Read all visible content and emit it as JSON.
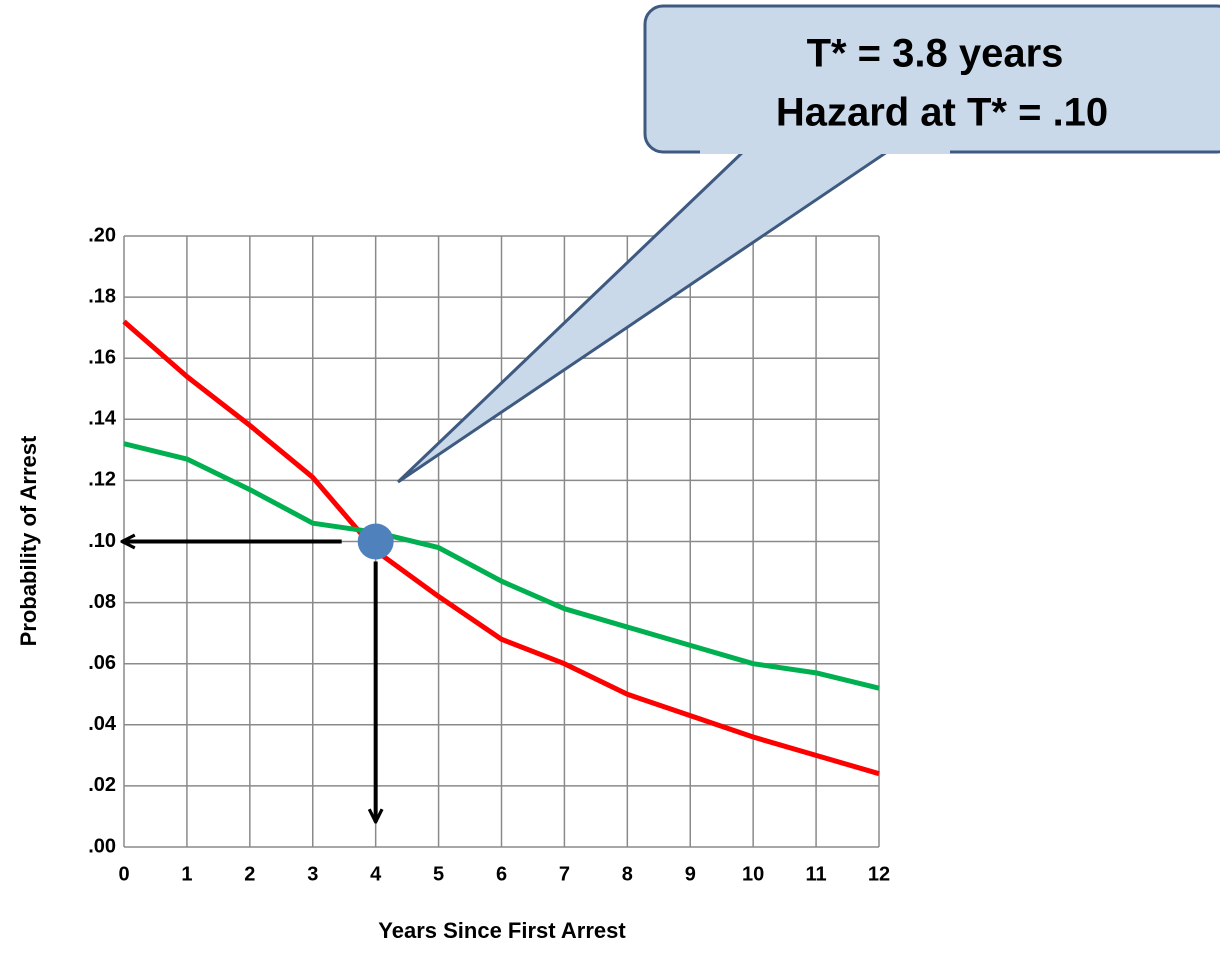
{
  "chart_data": {
    "type": "line",
    "annotation": [
      "T* = 3.8 years",
      "Hazard at T* = .10"
    ],
    "xlabel": "Years Since First Arrest",
    "ylabel": "Probability of Arrest",
    "x": [
      0,
      1,
      2,
      3,
      4,
      5,
      6,
      7,
      8,
      9,
      10,
      11,
      12
    ],
    "series": [
      {
        "color": "#ff0000",
        "values": [
          0.172,
          0.154,
          0.138,
          0.121,
          0.097,
          0.082,
          0.068,
          0.06,
          0.05,
          0.043,
          0.036,
          0.03,
          0.024
        ]
      },
      {
        "color": "#00b050",
        "values": [
          0.132,
          0.127,
          0.117,
          0.106,
          0.103,
          0.098,
          0.087,
          0.078,
          0.072,
          0.066,
          0.06,
          0.057,
          0.052
        ]
      }
    ],
    "point": {
      "x": 4,
      "y": 0.1,
      "color": "#4f81bd"
    },
    "xlim": [
      0,
      12
    ],
    "xticks": [
      0,
      1,
      2,
      3,
      4,
      5,
      6,
      7,
      8,
      9,
      10,
      11,
      12
    ],
    "ylim": [
      0,
      0.2
    ],
    "yticks": [
      {
        "value": 0,
        "label": ".00"
      },
      {
        "value": 0.02,
        "label": ".02"
      },
      {
        "value": 0.04,
        "label": ".04"
      },
      {
        "value": 0.06,
        "label": ".06"
      },
      {
        "value": 0.08,
        "label": ".08"
      },
      {
        "value": 0.1,
        "label": ".10"
      },
      {
        "value": 0.12,
        "label": ".12"
      },
      {
        "value": 0.14,
        "label": ".14"
      },
      {
        "value": 0.16,
        "label": ".16"
      },
      {
        "value": 0.18,
        "label": ".18"
      },
      {
        "value": 0.2,
        "label": ".20"
      }
    ],
    "grid": true
  }
}
